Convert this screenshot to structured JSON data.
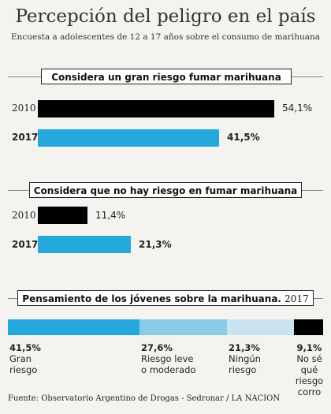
{
  "title": "Percepción del peligro en el país",
  "subtitle": "Encuesta a adolescentes de 12 a 17 años sobre el consumo de marihuana",
  "source": "Fuente: Observatorio Argentino de Drogas - Sedronar / LA NACION",
  "colors": {
    "y2010": "#000000",
    "y2017": "#25a8dc",
    "seg1": "#25a8dc",
    "seg2": "#8ccbe8",
    "seg3": "#c9e3f0",
    "seg4": "#000000"
  },
  "chart_data": [
    {
      "type": "bar",
      "title": "Considera un gran riesgo fumar marihuana",
      "categories": [
        "2010",
        "2017"
      ],
      "values": [
        54.1,
        41.5
      ],
      "labels": [
        "54,1%",
        "41,5%"
      ],
      "xlim": [
        0,
        54.1
      ]
    },
    {
      "type": "bar",
      "title": "Considera que no hay riesgo en fumar marihuana",
      "categories": [
        "2010",
        "2017"
      ],
      "values": [
        11.4,
        21.3
      ],
      "labels": [
        "11,4%",
        "21,3%"
      ],
      "xlim": [
        0,
        54.1
      ]
    },
    {
      "type": "bar",
      "stacked": true,
      "title": "Pensamiento de los jóvenes sobre la marihuana.",
      "title_year": "2017",
      "categories": [
        "Gran riesgo",
        "Riesgo leve o moderado",
        "Ningún riesgo",
        "No sé qué riesgo corro"
      ],
      "display_lines": [
        [
          "Gran",
          "riesgo"
        ],
        [
          "Riesgo leve",
          "o moderado"
        ],
        [
          "Ningún",
          "riesgo"
        ],
        [
          "No sé",
          "qué",
          "riesgo",
          "corro"
        ]
      ],
      "values": [
        41.5,
        27.6,
        21.3,
        9.1
      ],
      "labels": [
        "41,5%",
        "27,6%",
        "21,3%",
        "9,1%"
      ]
    }
  ]
}
